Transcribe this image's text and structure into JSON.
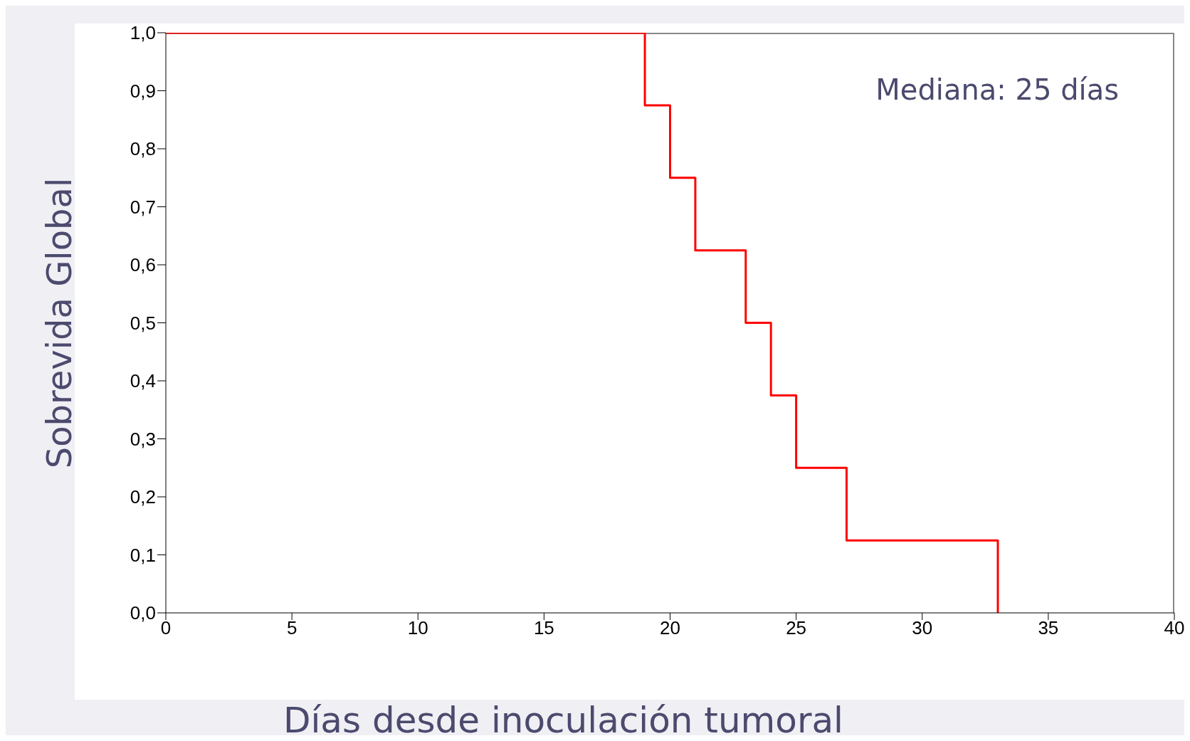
{
  "chart_data": {
    "type": "step",
    "xlabel": "Días desde inoculación tumoral",
    "ylabel": "Sobrevida Global",
    "annotations": [
      "Mediana: 25 días"
    ],
    "x": [
      0,
      19,
      20,
      21,
      23,
      24,
      25,
      27,
      33
    ],
    "series": [
      {
        "color": "#ff0000",
        "values": [
          1,
          0.875,
          0.75,
          0.625,
          0.5,
          0.375,
          0.25,
          0.125,
          0
        ]
      }
    ],
    "xlim": [
      0,
      40
    ],
    "xticks": [
      0,
      5,
      10,
      15,
      20,
      25,
      30,
      35,
      40
    ],
    "ylim": [
      0,
      1
    ],
    "yticks": [
      {
        "value": 0,
        "label": "0,0"
      },
      {
        "value": 0.1,
        "label": "0,1"
      },
      {
        "value": 0.2,
        "label": "0,2"
      },
      {
        "value": 0.3,
        "label": "0,3"
      },
      {
        "value": 0.4,
        "label": "0,4"
      },
      {
        "value": 0.5,
        "label": "0,5"
      },
      {
        "value": 0.6,
        "label": "0,6"
      },
      {
        "value": 0.7,
        "label": "0,7"
      },
      {
        "value": 0.8,
        "label": "0,8"
      },
      {
        "value": 0.9,
        "label": "0,9"
      },
      {
        "value": 1,
        "label": "1,0"
      }
    ],
    "grid": false,
    "legend": false,
    "marker": "none",
    "line_style": "solid"
  }
}
